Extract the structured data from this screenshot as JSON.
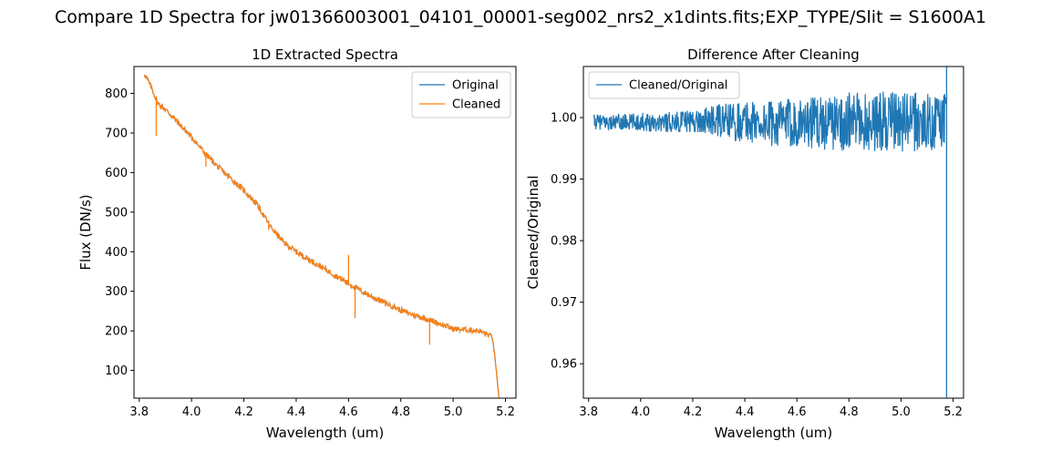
{
  "figure": {
    "suptitle": "Compare 1D Spectra for jw01366003001_04101_00001-seg002_nrs2_x1dints.fits;EXP_TYPE/Slit = S1600A1"
  },
  "chart_data": [
    {
      "type": "line",
      "title": "1D Extracted Spectra",
      "xlabel": "Wavelength (um)",
      "ylabel": "Flux (DN/s)",
      "xlim": [
        3.78,
        5.24
      ],
      "ylim": [
        30,
        868
      ],
      "xticks": [
        "3.8",
        "4.0",
        "4.2",
        "4.4",
        "4.6",
        "4.8",
        "5.0",
        "5.2"
      ],
      "yticks": [
        "100",
        "200",
        "300",
        "400",
        "500",
        "600",
        "700",
        "800"
      ],
      "grid": false,
      "legend_position": "upper right",
      "series": [
        {
          "name": "Original",
          "color": "#1f77b4",
          "x": [
            3.82,
            3.85,
            3.87,
            3.9,
            3.95,
            4.0,
            4.05,
            4.1,
            4.15,
            4.2,
            4.25,
            4.3,
            4.35,
            4.4,
            4.45,
            4.5,
            4.55,
            4.6,
            4.65,
            4.7,
            4.75,
            4.8,
            4.85,
            4.9,
            4.95,
            5.0,
            5.05,
            5.1,
            5.15,
            5.165,
            5.175
          ],
          "y": [
            850,
            810,
            775,
            760,
            725,
            690,
            650,
            615,
            585,
            555,
            520,
            465,
            425,
            400,
            380,
            360,
            340,
            320,
            300,
            283,
            268,
            252,
            240,
            230,
            218,
            205,
            203,
            200,
            185,
            100,
            30
          ]
        },
        {
          "name": "Cleaned",
          "color": "#ff7f0e",
          "x": [
            3.82,
            3.85,
            3.87,
            3.9,
            3.95,
            4.0,
            4.05,
            4.1,
            4.15,
            4.2,
            4.25,
            4.3,
            4.35,
            4.4,
            4.45,
            4.5,
            4.55,
            4.6,
            4.65,
            4.7,
            4.75,
            4.8,
            4.85,
            4.9,
            4.95,
            5.0,
            5.05,
            5.1,
            5.15,
            5.165,
            5.175
          ],
          "y": [
            850,
            810,
            775,
            760,
            725,
            690,
            650,
            615,
            585,
            555,
            520,
            465,
            425,
            400,
            380,
            360,
            340,
            320,
            300,
            283,
            268,
            252,
            240,
            230,
            218,
            205,
            203,
            200,
            185,
            100,
            30
          ]
        }
      ],
      "spikes": [
        {
          "x": 3.865,
          "y": 693,
          "color": "#ff7f0e"
        },
        {
          "x": 4.055,
          "y": 615,
          "color": "#ff7f0e"
        },
        {
          "x": 4.295,
          "y": 455,
          "color": "#ff7f0e"
        },
        {
          "x": 4.6,
          "y": 392,
          "color": "#ff7f0e"
        },
        {
          "x": 4.625,
          "y": 232,
          "color": "#ff7f0e"
        },
        {
          "x": 4.91,
          "y": 165,
          "color": "#ff7f0e"
        }
      ]
    },
    {
      "type": "line",
      "title": "Difference After Cleaning",
      "xlabel": "Wavelength (um)",
      "ylabel": "Cleaned/Original",
      "xlim": [
        3.78,
        5.24
      ],
      "ylim": [
        0.9544,
        1.0083
      ],
      "xticks": [
        "3.8",
        "4.0",
        "4.2",
        "4.4",
        "4.6",
        "4.8",
        "5.0",
        "5.2"
      ],
      "yticks": [
        "0.96",
        "0.97",
        "0.98",
        "0.99",
        "1.00"
      ],
      "grid": false,
      "legend_position": "upper left",
      "series": [
        {
          "name": "Cleaned/Original",
          "color": "#1f77b4",
          "x": [
            3.82,
            3.9,
            4.0,
            4.1,
            4.2,
            4.3,
            4.4,
            4.5,
            4.6,
            4.7,
            4.8,
            4.9,
            5.0,
            5.1,
            5.16,
            5.175
          ],
          "y": [
            0.9993,
            0.9992,
            0.9993,
            0.9993,
            0.9994,
            0.9995,
            0.9993,
            0.9991,
            0.9993,
            0.9992,
            0.9993,
            0.9994,
            0.9993,
            0.9992,
            0.9995,
            0.9996
          ]
        }
      ],
      "noise_amplitude": [
        {
          "x": 3.82,
          "amp": 0.0012
        },
        {
          "x": 4.2,
          "amp": 0.0018
        },
        {
          "x": 4.4,
          "amp": 0.0035
        },
        {
          "x": 4.6,
          "amp": 0.004
        },
        {
          "x": 4.8,
          "amp": 0.0048
        },
        {
          "x": 5.0,
          "amp": 0.005
        },
        {
          "x": 5.17,
          "amp": 0.0045
        }
      ],
      "vertical_line": {
        "x": 5.175,
        "color": "#1f77b4"
      }
    }
  ]
}
